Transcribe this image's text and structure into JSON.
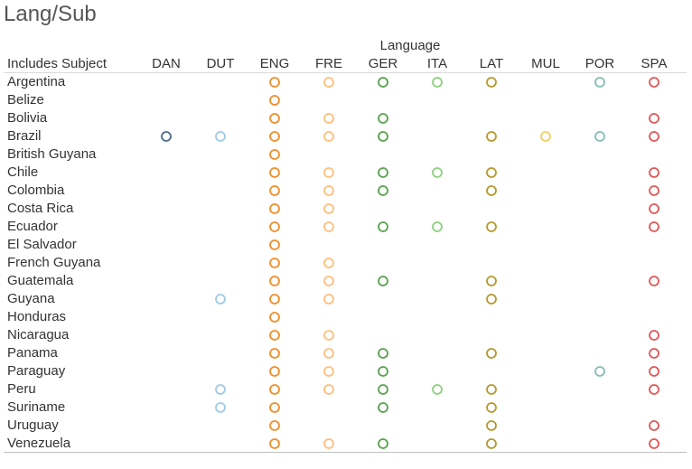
{
  "title": "Lang/Sub",
  "chart_data": {
    "type": "scatter",
    "title": "Lang/Sub",
    "column_group_label": "Language",
    "row_header": "Includes Subject",
    "languages": [
      "DAN",
      "DUT",
      "ENG",
      "FRE",
      "GER",
      "ITA",
      "LAT",
      "MUL",
      "POR",
      "SPA"
    ],
    "colors": {
      "DAN": "#4e6a8e",
      "DUT": "#9fcbe6",
      "ENG": "#f28e2b",
      "FRE": "#ffbe7d",
      "GER": "#59a14f",
      "ITA": "#8cd17d",
      "LAT": "#b6992d",
      "MUL": "#f1ce63",
      "POR": "#86bcb6",
      "SPA": "#e15759"
    },
    "rows": [
      {
        "subject": "Argentina",
        "languages": [
          "ENG",
          "FRE",
          "GER",
          "ITA",
          "LAT",
          "POR",
          "SPA"
        ]
      },
      {
        "subject": "Belize",
        "languages": [
          "ENG"
        ]
      },
      {
        "subject": "Bolivia",
        "languages": [
          "ENG",
          "FRE",
          "GER",
          "SPA"
        ]
      },
      {
        "subject": "Brazil",
        "languages": [
          "DAN",
          "DUT",
          "ENG",
          "FRE",
          "GER",
          "LAT",
          "MUL",
          "POR",
          "SPA"
        ]
      },
      {
        "subject": "British Guyana",
        "languages": [
          "ENG"
        ]
      },
      {
        "subject": "Chile",
        "languages": [
          "ENG",
          "FRE",
          "GER",
          "ITA",
          "LAT",
          "SPA"
        ]
      },
      {
        "subject": "Colombia",
        "languages": [
          "ENG",
          "FRE",
          "GER",
          "LAT",
          "SPA"
        ]
      },
      {
        "subject": "Costa Rica",
        "languages": [
          "ENG",
          "FRE",
          "SPA"
        ]
      },
      {
        "subject": "Ecuador",
        "languages": [
          "ENG",
          "FRE",
          "GER",
          "ITA",
          "LAT",
          "SPA"
        ]
      },
      {
        "subject": "El Salvador",
        "languages": [
          "ENG"
        ]
      },
      {
        "subject": "French Guyana",
        "languages": [
          "ENG",
          "FRE"
        ]
      },
      {
        "subject": "Guatemala",
        "languages": [
          "ENG",
          "FRE",
          "GER",
          "LAT",
          "SPA"
        ]
      },
      {
        "subject": "Guyana",
        "languages": [
          "DUT",
          "ENG",
          "FRE",
          "LAT"
        ]
      },
      {
        "subject": "Honduras",
        "languages": [
          "ENG"
        ]
      },
      {
        "subject": "Nicaragua",
        "languages": [
          "ENG",
          "FRE",
          "SPA"
        ]
      },
      {
        "subject": "Panama",
        "languages": [
          "ENG",
          "FRE",
          "GER",
          "LAT",
          "SPA"
        ]
      },
      {
        "subject": "Paraguay",
        "languages": [
          "ENG",
          "FRE",
          "GER",
          "POR",
          "SPA"
        ]
      },
      {
        "subject": "Peru",
        "languages": [
          "DUT",
          "ENG",
          "FRE",
          "GER",
          "ITA",
          "LAT",
          "SPA"
        ]
      },
      {
        "subject": "Suriname",
        "languages": [
          "DUT",
          "ENG",
          "GER",
          "LAT"
        ]
      },
      {
        "subject": "Uruguay",
        "languages": [
          "ENG",
          "LAT",
          "SPA"
        ]
      },
      {
        "subject": "Venezuela",
        "languages": [
          "ENG",
          "FRE",
          "GER",
          "LAT",
          "SPA"
        ]
      }
    ],
    "mark": "open-circle",
    "grid": false,
    "legend": "none"
  }
}
